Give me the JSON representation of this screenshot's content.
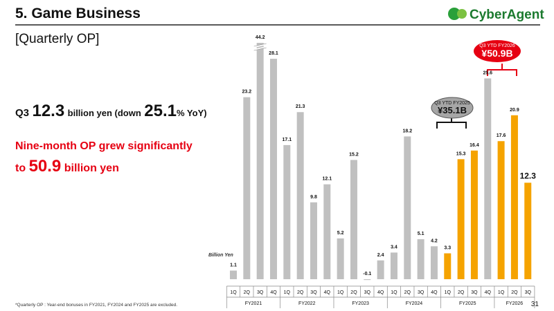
{
  "header": {
    "title": "5. Game Business",
    "logo": "CyberAgent"
  },
  "subtitle": "[Quarterly OP]",
  "headline": {
    "prefix": "Q3",
    "value": "12.3",
    "middle": "billion yen (down",
    "change": "25.1",
    "suffix": "% YoY)"
  },
  "highlight": {
    "line1": "Nine-month OP grew significantly",
    "to": "to",
    "value": "50.9",
    "unit": "billion yen"
  },
  "callouts": [
    {
      "label": "Q3 YTD FY2025",
      "value": "¥35.1B"
    },
    {
      "label": "Q3 YTD FY2026",
      "value": "¥50.9B"
    }
  ],
  "footnote": "*Quarterly OP : Year-end bonuses in FY2021, FY2024 and FY2025 are excluded.",
  "page_number": "31",
  "chart_data": {
    "type": "bar",
    "y_label": "Billion Yen",
    "categories": [
      "1Q",
      "2Q",
      "3Q",
      "4Q",
      "1Q",
      "2Q",
      "3Q",
      "4Q",
      "1Q",
      "2Q",
      "3Q",
      "4Q",
      "1Q",
      "2Q",
      "3Q",
      "4Q",
      "1Q",
      "2Q",
      "3Q",
      "4Q",
      "1Q",
      "2Q",
      "3Q"
    ],
    "groups": [
      "FY2021",
      "FY2022",
      "FY2023",
      "FY2024",
      "FY2025",
      "FY2026"
    ],
    "values": [
      1.1,
      23.2,
      44.2,
      28.1,
      17.1,
      21.3,
      9.8,
      12.1,
      5.2,
      15.2,
      -0.1,
      2.4,
      3.4,
      18.2,
      5.1,
      4.2,
      3.3,
      15.3,
      16.4,
      25.6,
      17.6,
      20.9,
      12.3
    ],
    "colors": [
      "#c0c0c0",
      "#c0c0c0",
      "#c0c0c0",
      "#c0c0c0",
      "#c0c0c0",
      "#c0c0c0",
      "#c0c0c0",
      "#c0c0c0",
      "#c0c0c0",
      "#c0c0c0",
      "#c0c0c0",
      "#c0c0c0",
      "#c0c0c0",
      "#c0c0c0",
      "#c0c0c0",
      "#c0c0c0",
      "#f5a300",
      "#f5a300",
      "#f5a300",
      "#c0c0c0",
      "#f5a300",
      "#f5a300",
      "#f5a300"
    ]
  }
}
